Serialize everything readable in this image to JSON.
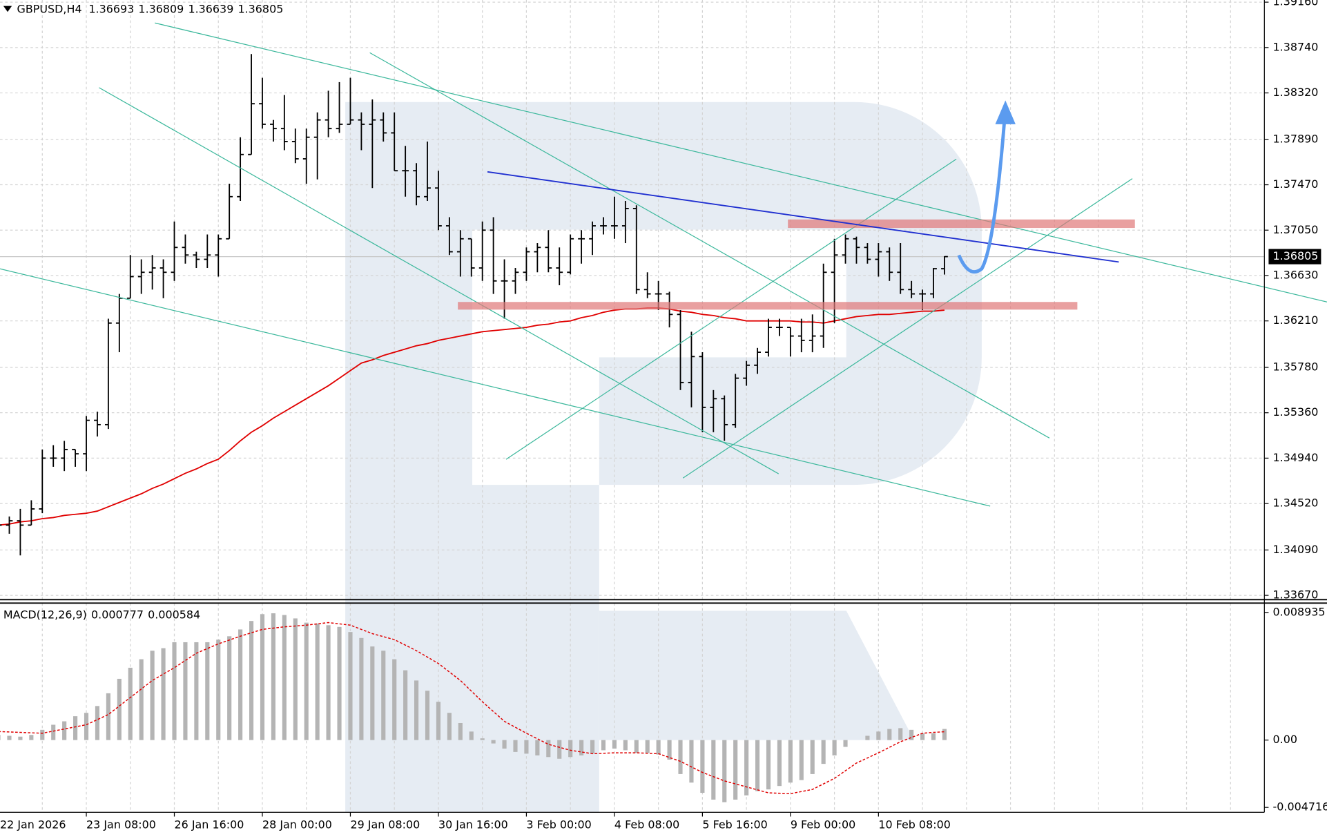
{
  "chart_data": [
    {
      "type": "ohlc",
      "symbol": "GBPUSD,H4",
      "color": "#000000",
      "grid": true,
      "categories": [
        "22 Jan 2026",
        null,
        null,
        null,
        null,
        null,
        null,
        null,
        "23 Jan 08:00",
        null,
        null,
        null,
        null,
        null,
        null,
        null,
        "26 Jan 16:00",
        null,
        null,
        null,
        null,
        null,
        null,
        null,
        "28 Jan 00:00",
        null,
        null,
        null,
        null,
        null,
        null,
        null,
        "29 Jan 08:00",
        null,
        null,
        null,
        null,
        null,
        null,
        null,
        "30 Jan 16:00",
        null,
        null,
        null,
        null,
        null,
        null,
        null,
        "3 Feb 00:00",
        null,
        null,
        null,
        null,
        null,
        null,
        null,
        "4 Feb 08:00",
        null,
        null,
        null,
        null,
        null,
        null,
        null,
        "5 Feb 16:00",
        null,
        null,
        null,
        null,
        null,
        null,
        null,
        "9 Feb 00:00",
        null,
        null,
        null,
        null,
        null,
        null,
        null,
        "10 Feb 08:00",
        null,
        null,
        null,
        null,
        null,
        null
      ],
      "open": [
        1.3436,
        1.3432,
        1.3436,
        1.3432,
        1.3447,
        1.3494,
        1.3494,
        1.3502,
        1.3498,
        1.3529,
        1.3525,
        1.3619,
        1.3642,
        1.3662,
        1.3666,
        1.367,
        1.3666,
        1.3689,
        1.3682,
        1.3678,
        1.3682,
        1.3697,
        1.3736,
        1.3775,
        1.3822,
        1.3803,
        1.3799,
        1.3787,
        1.3771,
        1.3791,
        1.3807,
        1.3799,
        1.3803,
        1.3807,
        1.3803,
        1.3807,
        1.3795,
        1.376,
        1.376,
        1.3736,
        1.3744,
        1.3709,
        1.3685,
        1.3697,
        1.367,
        1.3705,
        1.3658,
        1.3658,
        1.3666,
        1.3685,
        1.3689,
        1.367,
        1.3666,
        1.3697,
        1.3697,
        1.3709,
        1.3709,
        1.3709,
        1.3725,
        1.365,
        1.3646,
        1.3646,
        1.3627,
        1.3564,
        1.3588,
        1.3541,
        1.3549,
        1.3525,
        1.3568,
        1.358,
        1.3592,
        1.3615,
        1.3615,
        1.3607,
        1.3603,
        1.3607,
        1.3666,
        1.3682,
        1.3697,
        1.3689,
        1.3678,
        1.3685,
        1.3666,
        1.365,
        1.3646,
        1.3646,
        1.36693
      ],
      "high": [
        1.3444,
        1.344,
        1.3447,
        1.3455,
        1.3502,
        1.3506,
        1.351,
        1.3502,
        1.3533,
        1.3537,
        1.3623,
        1.3646,
        1.3682,
        1.3678,
        1.3682,
        1.3678,
        1.3713,
        1.3701,
        1.3685,
        1.3701,
        1.3701,
        1.3748,
        1.3791,
        1.3868,
        1.3846,
        1.3807,
        1.383,
        1.3799,
        1.3799,
        1.3814,
        1.3834,
        1.3842,
        1.3846,
        1.3814,
        1.3826,
        1.3814,
        1.3814,
        1.3783,
        1.3767,
        1.3787,
        1.376,
        1.3717,
        1.3705,
        1.3697,
        1.3713,
        1.3717,
        1.3678,
        1.367,
        1.3689,
        1.3693,
        1.3705,
        1.3689,
        1.3701,
        1.3705,
        1.3713,
        1.3717,
        1.3736,
        1.3732,
        1.3728,
        1.3666,
        1.3658,
        1.3648,
        1.3631,
        1.3611,
        1.3592,
        1.3557,
        1.3552,
        1.3572,
        1.3584,
        1.3596,
        1.3623,
        1.3623,
        1.3615,
        1.3623,
        1.3627,
        1.3674,
        1.3697,
        1.3701,
        1.3699,
        1.3693,
        1.3693,
        1.3689,
        1.3693,
        1.3658,
        1.365,
        1.367,
        1.36809
      ],
      "low": [
        1.3428,
        1.3424,
        1.3404,
        1.3432,
        1.3443,
        1.3486,
        1.3482,
        1.3486,
        1.3482,
        1.3514,
        1.3521,
        1.3592,
        1.3642,
        1.3646,
        1.365,
        1.3642,
        1.3658,
        1.3674,
        1.367,
        1.367,
        1.3662,
        1.3697,
        1.3732,
        1.3775,
        1.3799,
        1.3787,
        1.3779,
        1.3767,
        1.3748,
        1.3752,
        1.3791,
        1.3795,
        1.3803,
        1.3779,
        1.3744,
        1.3787,
        1.376,
        1.3736,
        1.3728,
        1.3732,
        1.3705,
        1.3682,
        1.3662,
        1.3662,
        1.3658,
        1.3646,
        1.3623,
        1.3646,
        1.3658,
        1.3666,
        1.3666,
        1.3654,
        1.3664,
        1.3674,
        1.3682,
        1.3701,
        1.3697,
        1.3693,
        1.3646,
        1.3642,
        1.3631,
        1.3615,
        1.3557,
        1.3541,
        1.3518,
        1.3518,
        1.351,
        1.3522,
        1.3561,
        1.3572,
        1.3588,
        1.3607,
        1.3588,
        1.3592,
        1.3592,
        1.3596,
        1.3619,
        1.3674,
        1.3674,
        1.3674,
        1.3662,
        1.3658,
        1.3646,
        1.3642,
        1.3631,
        1.3642,
        1.36639
      ],
      "close": [
        1.3432,
        1.3436,
        1.3432,
        1.3447,
        1.3494,
        1.3494,
        1.3502,
        1.3498,
        1.3529,
        1.3525,
        1.3619,
        1.3642,
        1.3662,
        1.3666,
        1.367,
        1.3666,
        1.3689,
        1.3682,
        1.3678,
        1.3682,
        1.3697,
        1.3736,
        1.3775,
        1.3822,
        1.3803,
        1.3799,
        1.3787,
        1.3771,
        1.3791,
        1.3807,
        1.3799,
        1.3803,
        1.3807,
        1.3803,
        1.3807,
        1.3795,
        1.376,
        1.376,
        1.3736,
        1.3744,
        1.3709,
        1.3685,
        1.3697,
        1.367,
        1.3705,
        1.3658,
        1.3658,
        1.3666,
        1.3685,
        1.3689,
        1.367,
        1.3666,
        1.3697,
        1.3697,
        1.3709,
        1.3709,
        1.3709,
        1.3725,
        1.365,
        1.3646,
        1.3646,
        1.3627,
        1.3564,
        1.3588,
        1.3541,
        1.3549,
        1.3525,
        1.3568,
        1.358,
        1.3592,
        1.3615,
        1.3615,
        1.3607,
        1.3603,
        1.3607,
        1.3666,
        1.3682,
        1.3697,
        1.3689,
        1.3678,
        1.3685,
        1.3666,
        1.365,
        1.3646,
        1.3646,
        1.36693,
        1.36805
      ],
      "ma": {
        "color": "#e00000",
        "values": [
          1.3432,
          1.3433,
          1.3435,
          1.3436,
          1.3438,
          1.3439,
          1.3441,
          1.3442,
          1.3443,
          1.3445,
          1.3449,
          1.3453,
          1.3457,
          1.3461,
          1.3466,
          1.347,
          1.3475,
          1.348,
          1.3484,
          1.3489,
          1.3493,
          1.3501,
          1.351,
          1.3518,
          1.3524,
          1.3531,
          1.3537,
          1.3543,
          1.3549,
          1.3555,
          1.3561,
          1.3568,
          1.3575,
          1.3582,
          1.3585,
          1.3589,
          1.3592,
          1.3595,
          1.3598,
          1.36,
          1.3603,
          1.3605,
          1.3607,
          1.3609,
          1.3611,
          1.3612,
          1.3613,
          1.3614,
          1.3615,
          1.3617,
          1.3618,
          1.362,
          1.3621,
          1.3624,
          1.3626,
          1.3629,
          1.3631,
          1.3632,
          1.3632,
          1.3633,
          1.3633,
          1.3632,
          1.363,
          1.3629,
          1.3627,
          1.3626,
          1.3624,
          1.3623,
          1.3621,
          1.3621,
          1.3621,
          1.3621,
          1.3621,
          1.362,
          1.362,
          1.3619,
          1.3621,
          1.3623,
          1.3625,
          1.3626,
          1.3627,
          1.3627,
          1.3628,
          1.3629,
          1.363,
          1.363,
          1.3631
        ]
      },
      "ylim": [
        1.3363,
        1.3918
      ],
      "yticks": [
        {
          "value": 1.3916,
          "label": "1.39160"
        },
        {
          "value": 1.3874,
          "label": "1.38740"
        },
        {
          "value": 1.3832,
          "label": "1.38320"
        },
        {
          "value": 1.3789,
          "label": "1.37890"
        },
        {
          "value": 1.3747,
          "label": "1.37470"
        },
        {
          "value": 1.3705,
          "label": "1.37050"
        },
        {
          "value": 1.3663,
          "label": "1.36630"
        },
        {
          "value": 1.3621,
          "label": "1.36210"
        },
        {
          "value": 1.3578,
          "label": "1.35780"
        },
        {
          "value": 1.3536,
          "label": "1.35360"
        },
        {
          "value": 1.3494,
          "label": "1.34940"
        },
        {
          "value": 1.3452,
          "label": "1.34520"
        },
        {
          "value": 1.3409,
          "label": "1.34090"
        },
        {
          "value": 1.3367,
          "label": "1.33670"
        }
      ]
    },
    {
      "type": "macd",
      "title": "MACD(12,26,9)",
      "grid": false,
      "histogram": {
        "color": "#b4b4b4",
        "values": [
          0.000358,
          0.000298,
          0.000238,
          0.000358,
          0.000715,
          0.001072,
          0.001311,
          0.001668,
          0.001906,
          0.002383,
          0.003276,
          0.004289,
          0.005063,
          0.005659,
          0.006255,
          0.006433,
          0.00685,
          0.00685,
          0.00685,
          0.00685,
          0.007029,
          0.007267,
          0.007744,
          0.008339,
          0.008816,
          0.008875,
          0.008756,
          0.008518,
          0.00822,
          0.008161,
          0.008042,
          0.007922,
          0.007565,
          0.007148,
          0.006552,
          0.006255,
          0.005659,
          0.004885,
          0.00417,
          0.003455,
          0.002681,
          0.001906,
          0.001191,
          0.000596,
          0.000119,
          -0.000238,
          -0.000596,
          -0.000834,
          -0.000953,
          -0.001072,
          -0.001191,
          -0.001311,
          -0.001191,
          -0.001072,
          -0.000953,
          -0.000715,
          -0.000596,
          -0.000715,
          -0.000894,
          -0.000894,
          -0.001013,
          -0.00137,
          -0.002383,
          -0.002978,
          -0.003693,
          -0.00417,
          -0.004348,
          -0.00417,
          -0.003872,
          -0.003574,
          -0.003455,
          -0.003217,
          -0.002978,
          -0.0028,
          -0.002383,
          -0.001668,
          -0.001072,
          -0.000477,
          0,
          0.000298,
          0.000596,
          0.000774,
          0.000834,
          0.000715,
          0.000477,
          0.000477,
          0.000777
        ]
      },
      "signal": {
        "color": "#e00000",
        "values": [
          0.000596,
          0.000566,
          0.000536,
          0.000507,
          0.000477,
          0.000626,
          0.000775,
          0.000924,
          0.001073,
          0.00143,
          0.001788,
          0.002384,
          0.00298,
          0.003576,
          0.004172,
          0.004619,
          0.005066,
          0.005573,
          0.006079,
          0.006407,
          0.006735,
          0.007003,
          0.007271,
          0.00751,
          0.007748,
          0.007837,
          0.007927,
          0.007986,
          0.008046,
          0.008135,
          0.008225,
          0.008135,
          0.008046,
          0.007748,
          0.00745,
          0.007241,
          0.007033,
          0.006645,
          0.006258,
          0.005811,
          0.005364,
          0.004768,
          0.004172,
          0.003427,
          0.002682,
          0.001997,
          0.001311,
          0.000894,
          0.000477,
          8.9e-05,
          -0.000298,
          -0.000507,
          -0.000715,
          -0.000834,
          -0.000954,
          -0.000924,
          -0.000894,
          -0.000894,
          -0.000894,
          -0.000924,
          -0.000954,
          -0.001222,
          -0.00149,
          -0.001877,
          -0.002265,
          -0.002563,
          -0.002861,
          -0.003069,
          -0.003278,
          -0.003487,
          -0.003695,
          -0.003725,
          -0.003755,
          -0.003606,
          -0.003457,
          -0.003069,
          -0.002682,
          -0.002146,
          -0.001609,
          -0.001252,
          -0.000894,
          -0.000507,
          -0.000119,
          0.000179,
          0.000477,
          0.000536,
          0.000584
        ]
      },
      "ylim": [
        -0.00506,
        0.00959
      ],
      "yticks": [
        0.008935,
        {
          "value": 0,
          "label": "0.00"
        },
        -0.004716
      ]
    }
  ]
}
